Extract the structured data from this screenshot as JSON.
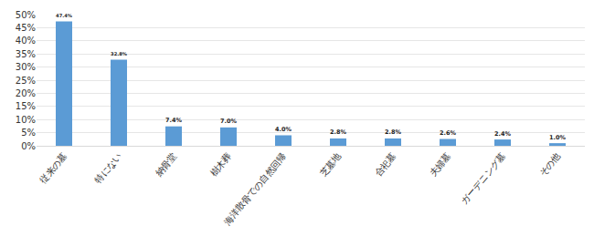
{
  "chart_data": {
    "type": "bar",
    "categories": [
      "従来の墓",
      "特にない",
      "納骨堂",
      "樹木葬",
      "海洋散骨での自然回帰",
      "芝墓地",
      "合祀墓",
      "夫婦墓",
      "ガーデニング墓",
      "その他"
    ],
    "values": [
      47.4,
      32.8,
      7.4,
      7.0,
      4.0,
      2.8,
      2.8,
      2.6,
      2.4,
      1.0
    ],
    "value_labels": [
      "47.4%",
      "32.8%",
      "7.4%",
      "7.0%",
      "4.0%",
      "2.8%",
      "2.8%",
      "2.6%",
      "2.4%",
      "1.0%"
    ],
    "color": "#5b9bd5",
    "ylim": [
      0,
      50
    ],
    "yticks": [
      {
        "value": 0,
        "label": "0%"
      },
      {
        "value": 5,
        "label": "5%"
      },
      {
        "value": 10,
        "label": "10%"
      },
      {
        "value": 15,
        "label": "15%"
      },
      {
        "value": 20,
        "label": "20%"
      },
      {
        "value": 25,
        "label": "25%"
      },
      {
        "value": 30,
        "label": "30%"
      },
      {
        "value": 35,
        "label": "35%"
      },
      {
        "value": 40,
        "label": "40%"
      },
      {
        "value": 45,
        "label": "45%"
      },
      {
        "value": 50,
        "label": "50%"
      }
    ],
    "grid": true,
    "data_labels": true
  }
}
